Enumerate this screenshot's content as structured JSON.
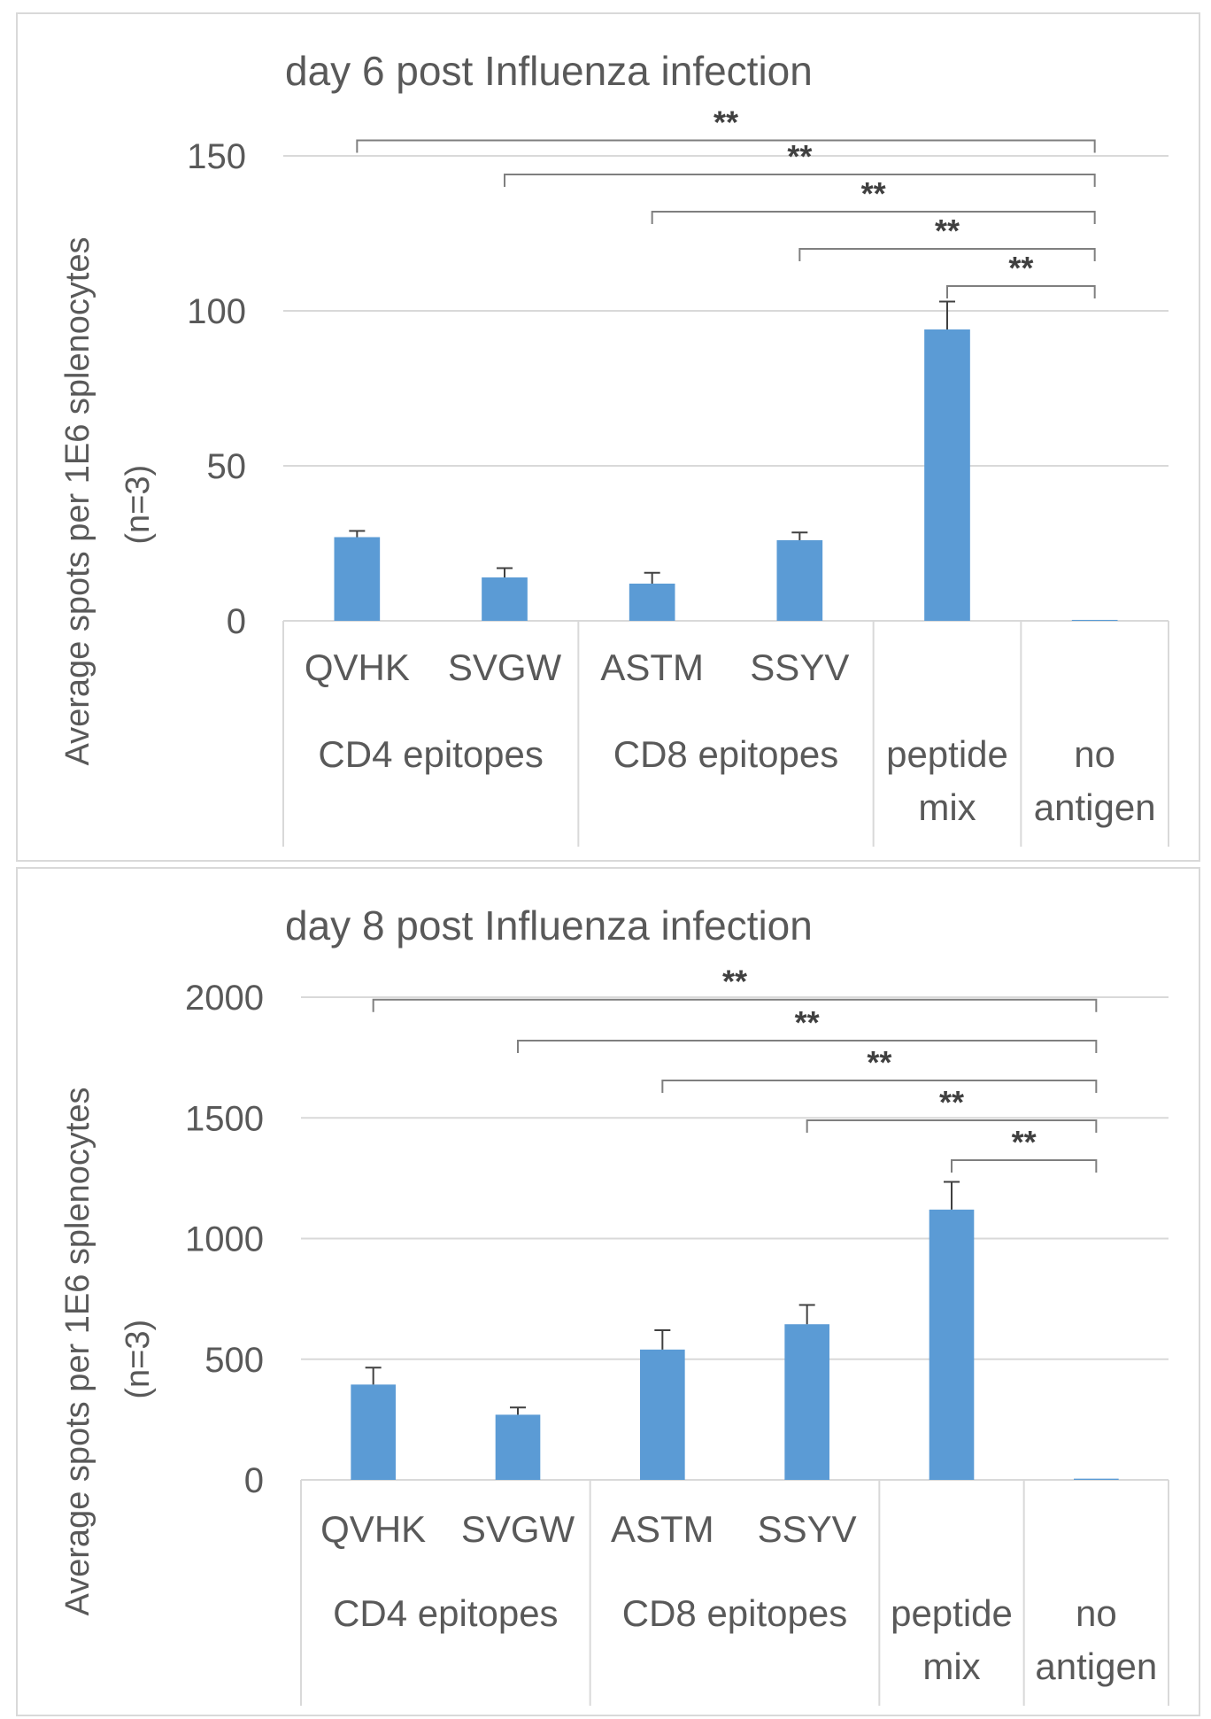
{
  "chart_data": [
    {
      "type": "bar",
      "title": "day 6 post Influenza infection",
      "ylabel_lines": [
        "Average spots per 1E6 splenocytes",
        "(n=3)"
      ],
      "categories": [
        "QVHK",
        "SVGW",
        "ASTM",
        "SSYV",
        "peptide mix",
        "no antigen"
      ],
      "category_labels": [
        "QVHK",
        "SVGW",
        "ASTM",
        "SSYV",
        "",
        ""
      ],
      "groups": [
        {
          "label_lines": [
            "CD4 epitopes"
          ],
          "span": [
            0,
            1
          ]
        },
        {
          "label_lines": [
            "CD8 epitopes"
          ],
          "span": [
            2,
            3
          ]
        },
        {
          "label_lines": [
            "peptide",
            "mix"
          ],
          "span": [
            4,
            4
          ]
        },
        {
          "label_lines": [
            "no",
            "antigen"
          ],
          "span": [
            5,
            5
          ]
        }
      ],
      "values": [
        27,
        14,
        12,
        26,
        94,
        0.3
      ],
      "errors": [
        2,
        3,
        3.5,
        2.5,
        9,
        0
      ],
      "ylim": [
        0,
        150
      ],
      "yticks": [
        0,
        50,
        100,
        150
      ],
      "tick_labels": [
        "0",
        "50",
        "100",
        "150"
      ],
      "grid": true,
      "bar_color": "#5b9bd5",
      "significance": [
        {
          "from": 0,
          "to": 5,
          "label": "**",
          "level": 155
        },
        {
          "from": 1,
          "to": 5,
          "label": "**",
          "level": 144
        },
        {
          "from": 2,
          "to": 5,
          "label": "**",
          "level": 132
        },
        {
          "from": 3,
          "to": 5,
          "label": "**",
          "level": 120
        },
        {
          "from": 4,
          "to": 5,
          "label": "**",
          "level": 108
        }
      ]
    },
    {
      "type": "bar",
      "title": "day 8 post Influenza infection",
      "ylabel_lines": [
        "Average spots per 1E6 splenocytes",
        "(n=3)"
      ],
      "categories": [
        "QVHK",
        "SVGW",
        "ASTM",
        "SSYV",
        "peptide mix",
        "no antigen"
      ],
      "category_labels": [
        "QVHK",
        "SVGW",
        "ASTM",
        "SSYV",
        "",
        ""
      ],
      "groups": [
        {
          "label_lines": [
            "CD4 epitopes"
          ],
          "span": [
            0,
            1
          ]
        },
        {
          "label_lines": [
            "CD8 epitopes"
          ],
          "span": [
            2,
            3
          ]
        },
        {
          "label_lines": [
            "peptide",
            "mix"
          ],
          "span": [
            4,
            4
          ]
        },
        {
          "label_lines": [
            "no",
            "antigen"
          ],
          "span": [
            5,
            5
          ]
        }
      ],
      "values": [
        395,
        270,
        540,
        645,
        1120,
        5
      ],
      "errors": [
        70,
        30,
        80,
        80,
        115,
        0
      ],
      "ylim": [
        0,
        2000
      ],
      "yticks": [
        0,
        500,
        1000,
        1500,
        2000
      ],
      "tick_labels": [
        "0",
        "500",
        "1000",
        "1500",
        "2000"
      ],
      "grid": true,
      "bar_color": "#5b9bd5",
      "significance": [
        {
          "from": 0,
          "to": 5,
          "label": "**",
          "level": 1990
        },
        {
          "from": 1,
          "to": 5,
          "label": "**",
          "level": 1820
        },
        {
          "from": 2,
          "to": 5,
          "label": "**",
          "level": 1655
        },
        {
          "from": 3,
          "to": 5,
          "label": "**",
          "level": 1490
        },
        {
          "from": 4,
          "to": 5,
          "label": "**",
          "level": 1325
        }
      ]
    }
  ]
}
